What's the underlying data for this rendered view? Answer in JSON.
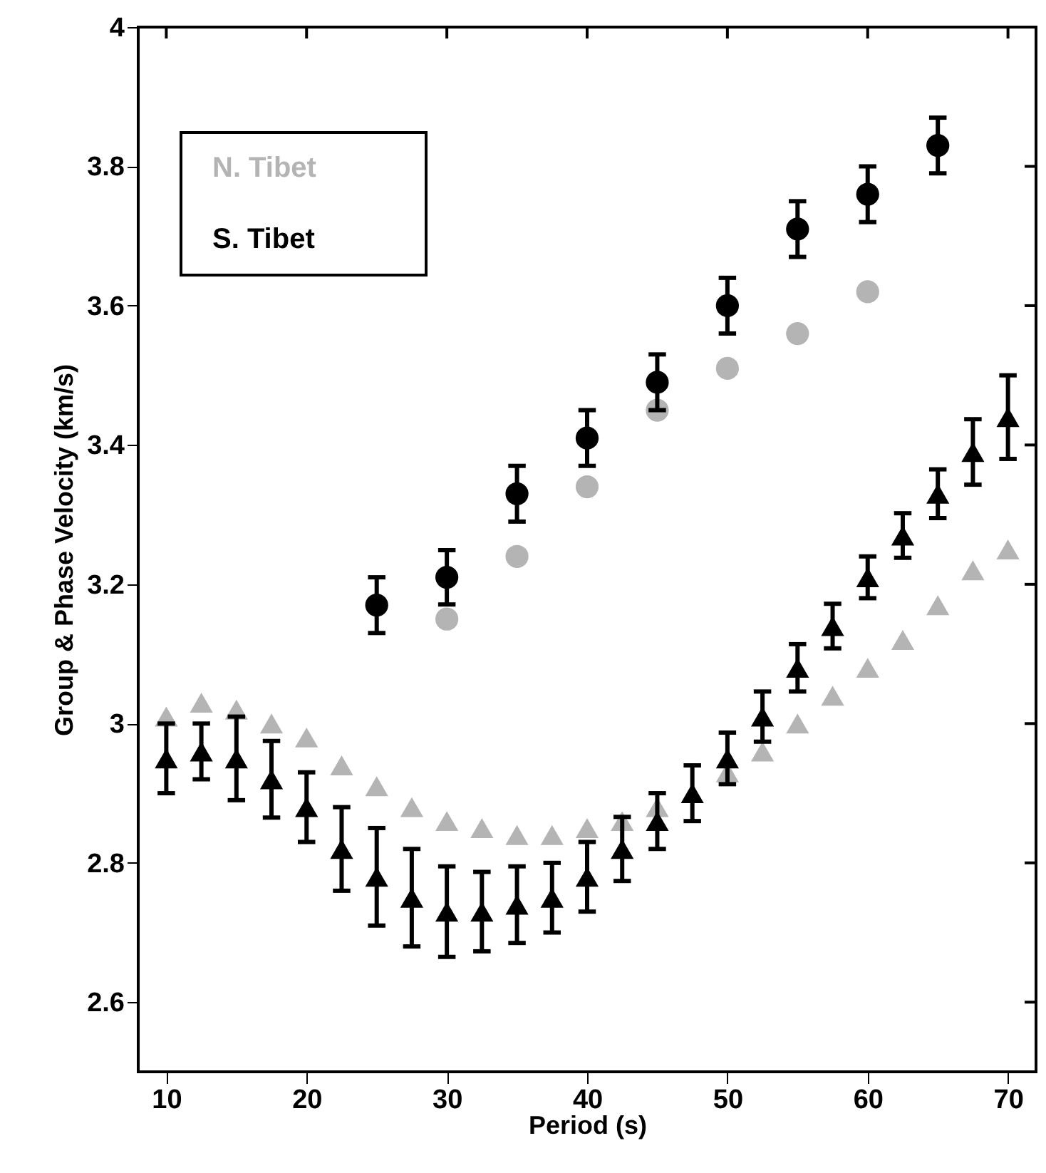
{
  "chart_data": {
    "type": "scatter",
    "xlabel": "Period (s)",
    "ylabel": "Group & Phase Velocity (km/s)",
    "xlim": [
      8,
      72
    ],
    "ylim": [
      2.5,
      4.0
    ],
    "xticks": [
      10,
      20,
      30,
      40,
      50,
      60,
      70
    ],
    "yticks": [
      2.6,
      2.8,
      {
        "value": 3,
        "label": "3"
      },
      3.2,
      3.4,
      3.6,
      3.8,
      {
        "value": 4,
        "label": "4"
      }
    ],
    "grid": false,
    "legend": "top left",
    "series": [
      {
        "name": "N. Tibet",
        "color": "#b4b4b4",
        "marker": "triangle",
        "x": [
          10,
          12.5,
          15,
          17.5,
          20,
          22.5,
          25,
          27.5,
          30,
          32.5,
          35,
          37.5,
          40,
          42.5,
          45,
          47.5,
          50,
          52.5,
          55,
          57.5,
          60,
          62.5,
          65,
          67.5,
          70
        ],
        "values": [
          3.01,
          3.03,
          3.02,
          3.0,
          2.98,
          2.94,
          2.91,
          2.88,
          2.86,
          2.85,
          2.84,
          2.84,
          2.85,
          2.86,
          2.88,
          null,
          2.93,
          2.96,
          3.0,
          3.04,
          3.08,
          3.12,
          3.17,
          3.22,
          3.25
        ]
      },
      {
        "color": "#b4b4b4",
        "marker": "circle",
        "x": [
          30,
          35,
          40,
          45,
          50,
          55,
          60
        ],
        "values": [
          3.15,
          3.24,
          3.34,
          3.45,
          3.51,
          3.56,
          3.62
        ]
      },
      {
        "name": "S. Tibet",
        "color": "#000000",
        "marker": "triangle",
        "x": [
          10,
          12.5,
          15,
          17.5,
          20,
          22.5,
          25,
          27.5,
          30,
          32.5,
          35,
          37.5,
          40,
          42.5,
          45,
          47.5,
          50,
          52.5,
          55,
          57.5,
          60,
          62.5,
          65,
          67.5,
          70
        ],
        "values": [
          2.95,
          2.96,
          2.95,
          2.92,
          2.88,
          2.82,
          2.78,
          2.75,
          2.73,
          2.73,
          2.74,
          2.75,
          2.78,
          2.82,
          2.86,
          2.9,
          2.95,
          3.01,
          3.08,
          3.14,
          3.21,
          3.27,
          3.33,
          3.39,
          3.44
        ],
        "errors": [
          0.05,
          0.04,
          0.06,
          0.055,
          0.05,
          0.06,
          0.07,
          0.07,
          0.065,
          0.057,
          0.055,
          0.05,
          0.05,
          0.046,
          0.04,
          0.04,
          0.037,
          0.036,
          0.034,
          0.032,
          0.03,
          0.032,
          0.035,
          0.047,
          0.06
        ]
      },
      {
        "color": "#000000",
        "marker": "circle",
        "x": [
          25,
          30,
          35,
          40,
          45,
          50,
          55,
          60,
          65
        ],
        "values": [
          3.17,
          3.21,
          3.33,
          3.41,
          3.49,
          3.6,
          3.71,
          3.76,
          3.83
        ],
        "errors": [
          0.04,
          0.039,
          0.04,
          0.04,
          0.04,
          0.04,
          0.04,
          0.04,
          0.04
        ]
      }
    ]
  }
}
